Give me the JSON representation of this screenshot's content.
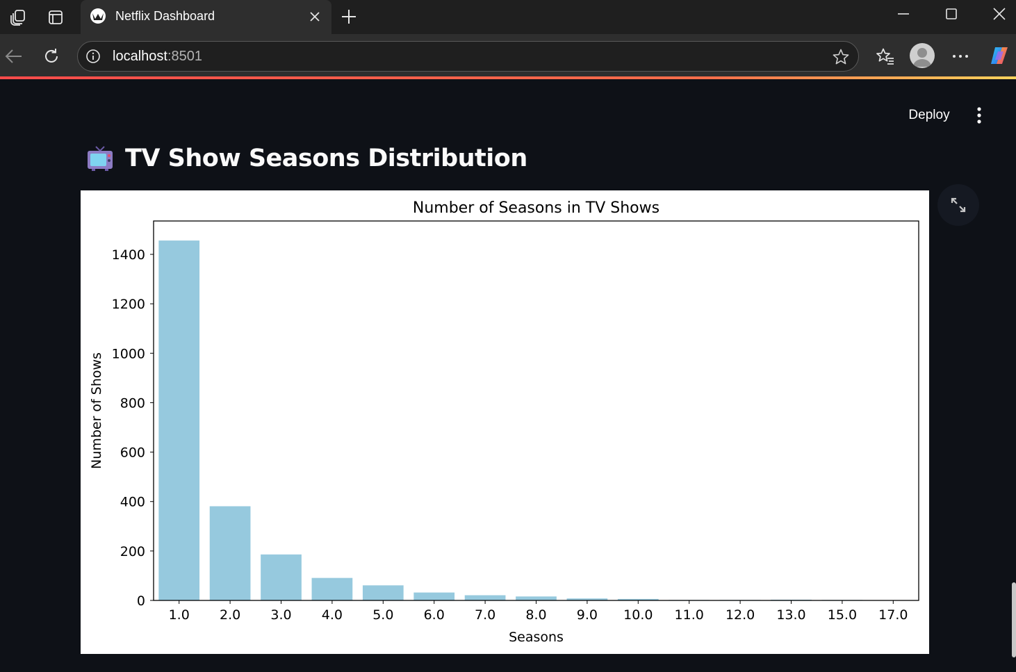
{
  "browser": {
    "tab_title": "Netflix Dashboard",
    "url_host": "localhost",
    "url_port": ":8501"
  },
  "header": {
    "deploy_label": "Deploy"
  },
  "page": {
    "emoji": "📺",
    "title": "TV Show Seasons Distribution"
  },
  "colors": {
    "bar": "#96c9de",
    "app_background": "#0e1117"
  },
  "chart_data": {
    "type": "bar",
    "title": "Number of Seasons in TV Shows",
    "xlabel": "Seasons",
    "ylabel": "Number of Shows",
    "categories": [
      "1.0",
      "2.0",
      "3.0",
      "4.0",
      "5.0",
      "6.0",
      "7.0",
      "8.0",
      "9.0",
      "10.0",
      "11.0",
      "12.0",
      "13.0",
      "15.0",
      "17.0"
    ],
    "values": [
      1456,
      381,
      186,
      91,
      61,
      32,
      21,
      16,
      8,
      6,
      2,
      2,
      3,
      2,
      1
    ],
    "ylim": [
      0,
      1535
    ],
    "yticks": [
      0,
      200,
      400,
      600,
      800,
      1000,
      1200,
      1400
    ],
    "grid": false
  }
}
